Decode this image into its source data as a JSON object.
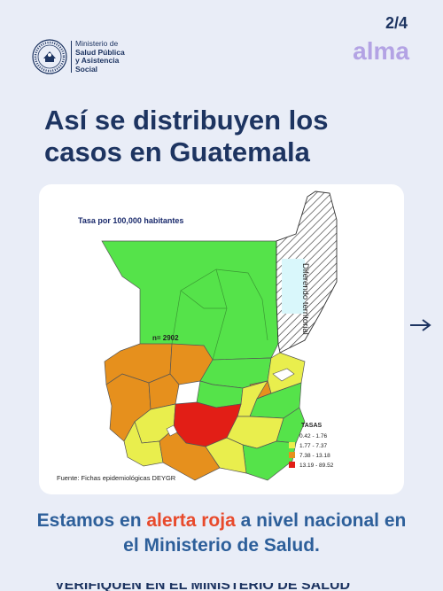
{
  "header": {
    "ministry_line1": "Ministerio de",
    "ministry_line2": "Salud Pública",
    "ministry_line3": "y Asistencia",
    "ministry_line4": "Social",
    "page_number": "2/4",
    "brand": "alma"
  },
  "title": "Así se distribuyen los casos en Guatemala",
  "map": {
    "subtitle": "Tasa por 100,000 habitantes",
    "n_label": "n= 2902",
    "disputed_label": "Diferendo territorial",
    "source": "Fuente: Fichas epidemiológicas DEYGR",
    "legend": {
      "title": "TASAS",
      "items": [
        {
          "label": "0.42 - 1.76",
          "color": "#55e34a"
        },
        {
          "label": "1.77 - 7.37",
          "color": "#e9ee4d"
        },
        {
          "label": "7.38 - 13.18",
          "color": "#e6901d"
        },
        {
          "label": "13.19 - 89.52",
          "color": "#e21e16"
        }
      ]
    }
  },
  "footer": {
    "part1": "Estamos en ",
    "alert": "alerta roja",
    "part2": " a nivel nacional en el Ministerio de Salud."
  },
  "cut_text": "VERIFIQUEN EN EL MINISTERIO DE SALUD"
}
